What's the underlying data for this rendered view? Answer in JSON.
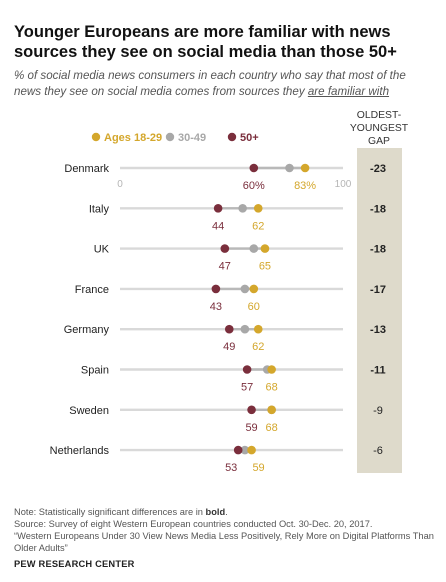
{
  "title": "Younger Europeans are more familiar with news sources they see on social media than those 50+",
  "subtitle": {
    "prefix": "% of social media news consumers in each country who say that most of the news they see on social media comes from sources they ",
    "emphasis": "are familiar with"
  },
  "gap_header": [
    "OLDEST-",
    "YOUNGEST",
    "GAP"
  ],
  "notes": {
    "note_prefix": "Note: Statistically significant differences are in ",
    "note_bold": "bold",
    "note_suffix": ".",
    "source": "Source: Survey of eight Western European countries conducted Oct. 30-Dec. 20, 2017.",
    "report": "“Western Europeans Under 30 View News Media Less Positively, Rely More on Digital Platforms Than Older Adults”",
    "org": "PEW RESEARCH CENTER"
  },
  "colors": {
    "ages_18_29": "#d4a72c",
    "ages_30_49": "#a8a8a8",
    "ages_50_plus": "#7a2e3c",
    "gap_column": "#dedacb",
    "track": "#d9d9d9"
  },
  "chart_data": {
    "type": "dot_plot",
    "xlim": [
      0,
      100
    ],
    "axis_tick_labels": [
      "0",
      "100"
    ],
    "legend": [
      "Ages 18-29",
      "30-49",
      "50+"
    ],
    "categories": [
      "Denmark",
      "Italy",
      "UK",
      "France",
      "Germany",
      "Spain",
      "Sweden",
      "Netherlands"
    ],
    "series": [
      {
        "name": "Ages 18-29",
        "values": [
          83,
          62,
          65,
          60,
          62,
          68,
          68,
          59
        ],
        "labeled": true
      },
      {
        "name": "30-49",
        "values": [
          76,
          55,
          60,
          56,
          56,
          66,
          68,
          56
        ],
        "labeled": false
      },
      {
        "name": "50+",
        "values": [
          60,
          44,
          47,
          43,
          49,
          57,
          59,
          53
        ],
        "labeled": true
      }
    ],
    "gap": [
      "-23",
      "-18",
      "-18",
      "-17",
      "-13",
      "-11",
      "-9",
      "-6"
    ],
    "gap_bold": [
      true,
      true,
      true,
      true,
      true,
      true,
      false,
      false
    ]
  }
}
